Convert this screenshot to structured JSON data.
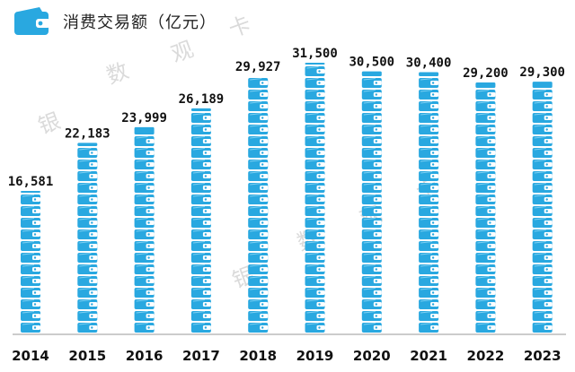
{
  "header": {
    "title": "消费交易额（亿元）",
    "icon": "wallet-icon"
  },
  "watermark": {
    "chars": [
      "银",
      "数",
      "观",
      "卡"
    ]
  },
  "colors": {
    "tile": "#29a8e0",
    "tile_light": "#7fd0f2",
    "tile_band": "#ffffff",
    "text": "#111111"
  },
  "chart_data": {
    "type": "bar",
    "title": "消费交易额（亿元）",
    "categories": [
      "2014",
      "2015",
      "2016",
      "2017",
      "2018",
      "2019",
      "2020",
      "2021",
      "2022",
      "2023"
    ],
    "values": [
      16581,
      22183,
      23999,
      26189,
      29927,
      31500,
      30500,
      30400,
      29200,
      29300
    ],
    "value_labels": [
      "16,581",
      "22,183",
      "23,999",
      "26,189",
      "29,927",
      "31,500",
      "30,500",
      "30,400",
      "29,200",
      "29,300"
    ],
    "ylim": [
      0,
      34000
    ],
    "grid": false,
    "legend": "none"
  }
}
